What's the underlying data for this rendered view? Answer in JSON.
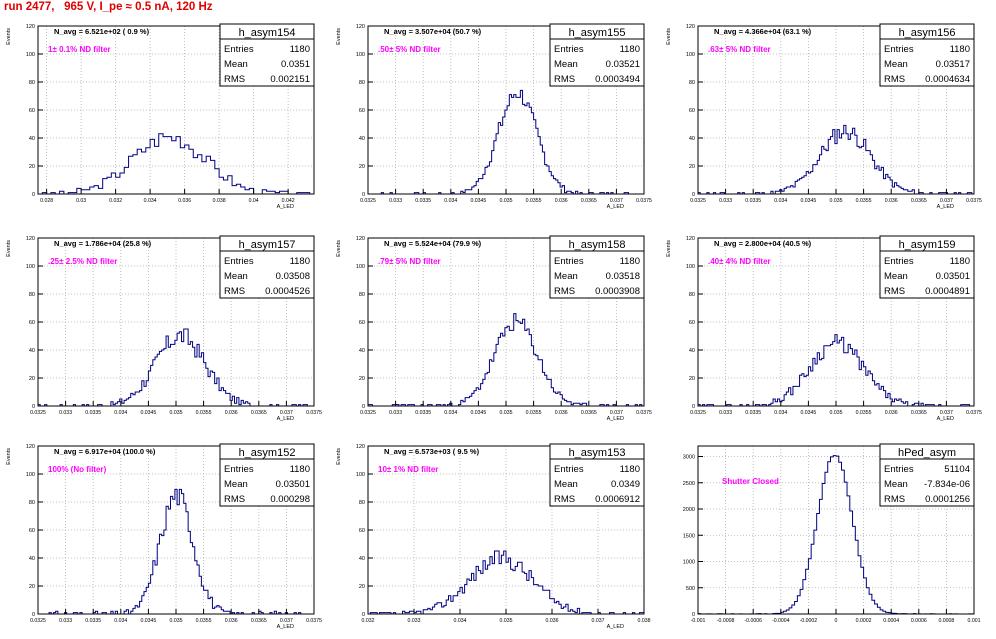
{
  "page": {
    "title": "run 2477,   965 V, I_pe ≈ 0.5 nA, 120 Hz"
  },
  "colors": {
    "title": "#e00000",
    "histogram": "#000080",
    "annotation": "#ff00ff",
    "grid": "#b0b0b0"
  },
  "chart_data": [
    {
      "type": "bar",
      "name": "h_asym154",
      "ylabel": "Events",
      "xlabel": "A_LED",
      "xlim": [
        0.0275,
        0.0435
      ],
      "ylim": [
        0,
        120
      ],
      "xticks": [
        0.028,
        0.03,
        0.032,
        0.034,
        0.036,
        0.038,
        0.04,
        0.042
      ],
      "xtick_labels": [
        "0.028",
        "0.03",
        "0.032",
        "0.034",
        "0.036",
        "0.038",
        "0.04",
        "0.042"
      ],
      "yticks": [
        0,
        20,
        40,
        60,
        80,
        100,
        120
      ],
      "navg": "N_avg = 6.521e+02 ( 0.9 %)",
      "filter": "1± 0.1% ND filter",
      "stats": {
        "entries": "1180",
        "mean": "0.0351",
        "rms": "0.002151"
      },
      "hist": {
        "mean": 0.0351,
        "sigma": 0.0021,
        "peak": 41,
        "bw": 0.00025,
        "noise": 6,
        "seed": 3
      }
    },
    {
      "type": "bar",
      "name": "h_asym155",
      "ylabel": "Events",
      "xlabel": "A_LED",
      "xlim": [
        0.0325,
        0.0375
      ],
      "ylim": [
        0,
        120
      ],
      "xticks": [
        0.0325,
        0.033,
        0.0335,
        0.034,
        0.0345,
        0.035,
        0.0355,
        0.036,
        0.0365,
        0.037,
        0.0375
      ],
      "xtick_labels": [
        "0.0325",
        "0.033",
        "0.0335",
        "0.034",
        "0.0345",
        "0.035",
        "0.0355",
        "0.036",
        "0.0365",
        "0.037",
        "0.0375"
      ],
      "yticks": [
        0,
        20,
        40,
        60,
        80,
        100,
        120
      ],
      "navg": "N_avg = 3.507e+04 (50.7 %)",
      "filter": ".50± 5% ND filter",
      "stats": {
        "entries": "1180",
        "mean": "0.03521",
        "rms": "0.0003494"
      },
      "hist": {
        "mean": 0.03521,
        "sigma": 0.00035,
        "peak": 72,
        "bw": 4e-05,
        "noise": 6,
        "seed": 7
      }
    },
    {
      "type": "bar",
      "name": "h_asym156",
      "ylabel": "Events",
      "xlabel": "A_LED",
      "xlim": [
        0.0325,
        0.0375
      ],
      "ylim": [
        0,
        120
      ],
      "xticks": [
        0.0325,
        0.033,
        0.0335,
        0.034,
        0.0345,
        0.035,
        0.0355,
        0.036,
        0.0365,
        0.037,
        0.0375
      ],
      "xtick_labels": [
        "0.0325",
        "0.033",
        "0.0335",
        "0.034",
        "0.0345",
        "0.035",
        "0.0355",
        "0.036",
        "0.0365",
        "0.037",
        "0.0375"
      ],
      "yticks": [
        0,
        20,
        40,
        60,
        80,
        100,
        120
      ],
      "navg": "N_avg = 4.366e+04 (63.1 %)",
      "filter": ".63± 5% ND filter",
      "stats": {
        "entries": "1180",
        "mean": "0.03517",
        "rms": "0.0004634"
      },
      "hist": {
        "mean": 0.03517,
        "sigma": 0.00046,
        "peak": 45,
        "bw": 4e-05,
        "noise": 6,
        "seed": 11
      }
    },
    {
      "type": "bar",
      "name": "h_asym157",
      "ylabel": "Events",
      "xlabel": "A_LED",
      "xlim": [
        0.0325,
        0.0375
      ],
      "ylim": [
        0,
        120
      ],
      "xticks": [
        0.0325,
        0.033,
        0.0335,
        0.034,
        0.0345,
        0.035,
        0.0355,
        0.036,
        0.0365,
        0.037,
        0.0375
      ],
      "xtick_labels": [
        "0.0325",
        "0.033",
        "0.0335",
        "0.034",
        "0.0345",
        "0.035",
        "0.0355",
        "0.036",
        "0.0365",
        "0.037",
        "0.0375"
      ],
      "yticks": [
        0,
        20,
        40,
        60,
        80,
        100,
        120
      ],
      "navg": "N_avg = 1.786e+04 (25.8 %)",
      "filter": ".25± 2.5% ND filter",
      "stats": {
        "entries": "1180",
        "mean": "0.03508",
        "rms": "0.0004526"
      },
      "hist": {
        "mean": 0.03508,
        "sigma": 0.00045,
        "peak": 50,
        "bw": 4e-05,
        "noise": 7,
        "seed": 17
      }
    },
    {
      "type": "bar",
      "name": "h_asym158",
      "ylabel": "Events",
      "xlabel": "A_LED",
      "xlim": [
        0.0325,
        0.0375
      ],
      "ylim": [
        0,
        120
      ],
      "xticks": [
        0.0325,
        0.033,
        0.0335,
        0.034,
        0.0345,
        0.035,
        0.0355,
        0.036,
        0.0365,
        0.037,
        0.0375
      ],
      "xtick_labels": [
        "0.0325",
        "0.033",
        "0.0335",
        "0.034",
        "0.0345",
        "0.035",
        "0.0355",
        "0.036",
        "0.0365",
        "0.037",
        "0.0375"
      ],
      "yticks": [
        0,
        20,
        40,
        60,
        80,
        100,
        120
      ],
      "navg": "N_avg = 5.524e+04 (79.9 %)",
      "filter": ".79± 5% ND filter",
      "stats": {
        "entries": "1180",
        "mean": "0.03518",
        "rms": "0.0003908"
      },
      "hist": {
        "mean": 0.03518,
        "sigma": 0.00039,
        "peak": 60,
        "bw": 4e-05,
        "noise": 6,
        "seed": 23
      }
    },
    {
      "type": "bar",
      "name": "h_asym159",
      "ylabel": "Events",
      "xlabel": "A_LED",
      "xlim": [
        0.0325,
        0.0375
      ],
      "ylim": [
        0,
        120
      ],
      "xticks": [
        0.0325,
        0.033,
        0.0335,
        0.034,
        0.0345,
        0.035,
        0.0355,
        0.036,
        0.0365,
        0.037,
        0.0375
      ],
      "xtick_labels": [
        "0.0325",
        "0.033",
        "0.0335",
        "0.034",
        "0.0345",
        "0.035",
        "0.0355",
        "0.036",
        "0.0365",
        "0.037",
        "0.0375"
      ],
      "yticks": [
        0,
        20,
        40,
        60,
        80,
        100,
        120
      ],
      "navg": "N_avg = 2.800e+04 (40.5 %)",
      "filter": ".40± 4% ND filter",
      "stats": {
        "entries": "1180",
        "mean": "0.03501",
        "rms": "0.0004891"
      },
      "hist": {
        "mean": 0.03501,
        "sigma": 0.00049,
        "peak": 45,
        "bw": 4e-05,
        "noise": 6,
        "seed": 29
      }
    },
    {
      "type": "bar",
      "name": "h_asym152",
      "ylabel": "Events",
      "xlabel": "A_LED",
      "xlim": [
        0.0325,
        0.0375
      ],
      "ylim": [
        0,
        120
      ],
      "xticks": [
        0.0325,
        0.033,
        0.0335,
        0.034,
        0.0345,
        0.035,
        0.0355,
        0.036,
        0.0365,
        0.037,
        0.0375
      ],
      "xtick_labels": [
        "0.0325",
        "0.033",
        "0.0335",
        "0.034",
        "0.0345",
        "0.035",
        "0.0355",
        "0.036",
        "0.0365",
        "0.037",
        "0.0375"
      ],
      "yticks": [
        0,
        20,
        40,
        60,
        80,
        100,
        120
      ],
      "navg": "N_avg = 6.917e+04 (100.0 %)",
      "filter": "100% (No filter)",
      "stats": {
        "entries": "1180",
        "mean": "0.03501",
        "rms": "0.000298"
      },
      "hist": {
        "mean": 0.03501,
        "sigma": 0.0003,
        "peak": 85,
        "bw": 4e-05,
        "noise": 8,
        "seed": 31
      }
    },
    {
      "type": "bar",
      "name": "h_asym153",
      "ylabel": "Events",
      "xlabel": "A_LED",
      "xlim": [
        0.032,
        0.038
      ],
      "ylim": [
        0,
        120
      ],
      "xticks": [
        0.032,
        0.033,
        0.034,
        0.035,
        0.036,
        0.037,
        0.038
      ],
      "xtick_labels": [
        "0.032",
        "0.033",
        "0.034",
        "0.035",
        "0.036",
        "0.037",
        "0.038"
      ],
      "yticks": [
        0,
        20,
        40,
        60,
        80,
        100,
        120
      ],
      "navg": "N_avg = 6.573e+03 ( 9.5 %)",
      "filter": "10± 1% ND filter",
      "stats": {
        "entries": "1180",
        "mean": "0.0349",
        "rms": "0.0006912"
      },
      "hist": {
        "mean": 0.0349,
        "sigma": 0.00069,
        "peak": 40,
        "bw": 5e-05,
        "noise": 6,
        "seed": 37
      }
    },
    {
      "type": "bar",
      "name": "hPed_asym",
      "ylabel": "",
      "xlabel": "",
      "xlim": [
        -0.001,
        0.001
      ],
      "ylim": [
        0,
        3200
      ],
      "xticks": [
        -0.001,
        -0.0008,
        -0.0006,
        -0.0004,
        -0.0002,
        0,
        0.0002,
        0.0004,
        0.0006,
        0.0008,
        0.001
      ],
      "xtick_labels": [
        "-0.001",
        "-0.0008",
        "-0.0006",
        "-0.0004",
        "-0.0002",
        "0",
        "0.0002",
        "0.0004",
        "0.0006",
        "0.0008",
        "0.001"
      ],
      "yticks": [
        0,
        500,
        1000,
        1500,
        2000,
        2500,
        3000
      ],
      "navg": "",
      "filter": "Shutter Closed",
      "stats": {
        "entries": "51104",
        "mean": "-7.834e-06",
        "rms": "0.0001256"
      },
      "hist": {
        "mean": -7.8e-06,
        "sigma": 0.000126,
        "peak": 3040,
        "bw": 2e-05,
        "noise": 30,
        "seed": 41
      }
    }
  ],
  "labels": {
    "entries": "Entries",
    "mean": "Mean",
    "rms": "RMS"
  }
}
